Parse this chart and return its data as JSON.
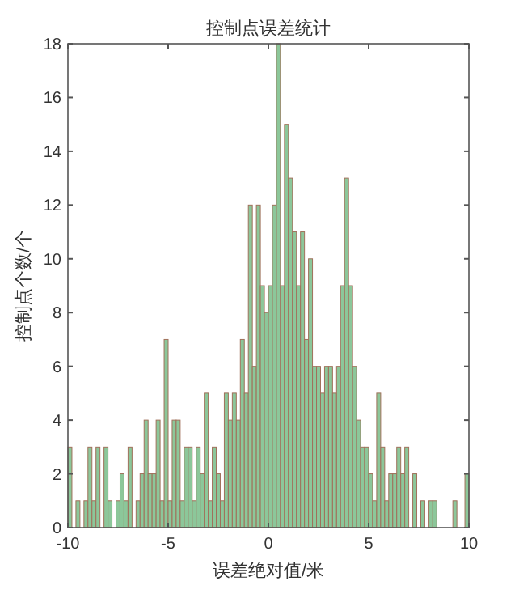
{
  "chart_data": {
    "type": "histogram",
    "title": "控制点误差统计",
    "xlabel": "误差绝对值/米",
    "ylabel": "控制点个数/个",
    "bins": [
      -10,
      -9.8,
      -9.6,
      -9.4,
      -9.2,
      -9,
      -8.8,
      -8.6,
      -8.4,
      -8.2,
      -8,
      -7.8,
      -7.6,
      -7.4,
      -7.2,
      -7,
      -6.8,
      -6.6,
      -6.4,
      -6.2,
      -6,
      -5.8,
      -5.6,
      -5.4,
      -5.2,
      -5,
      -4.8,
      -4.6,
      -4.4,
      -4.2,
      -4,
      -3.8,
      -3.6,
      -3.4,
      -3.2,
      -3,
      -2.8,
      -2.6,
      -2.4,
      -2.2,
      -2,
      -1.8,
      -1.6,
      -1.4,
      -1.2,
      -1,
      -0.8,
      -0.6,
      -0.4,
      -0.2,
      0,
      0.2,
      0.4,
      0.6,
      0.8,
      1,
      1.2,
      1.4,
      1.6,
      1.8,
      2,
      2.2,
      2.4,
      2.6,
      2.8,
      3,
      3.2,
      3.4,
      3.6,
      3.8,
      4,
      4.2,
      4.4,
      4.6,
      4.8,
      5,
      5.2,
      5.4,
      5.6,
      5.8,
      6,
      6.2,
      6.4,
      6.6,
      6.8,
      7,
      7.2,
      7.4,
      7.6,
      7.8,
      8,
      8.2,
      8.4,
      8.6,
      8.8,
      9,
      9.2,
      9.4,
      9.6,
      9.8,
      10
    ],
    "values": [
      3,
      0,
      1,
      0,
      1,
      3,
      1,
      3,
      0,
      3,
      1,
      0,
      1,
      2,
      1,
      3,
      0,
      1,
      2,
      4,
      2,
      2,
      4,
      1,
      7,
      1,
      4,
      4,
      1,
      3,
      3,
      1,
      3,
      2,
      5,
      1,
      3,
      2,
      1,
      5,
      4,
      5,
      4,
      7,
      5,
      12,
      6,
      12,
      9,
      8,
      9,
      12,
      18,
      9,
      15,
      13,
      11,
      9,
      11,
      7,
      10,
      6,
      6,
      5,
      6,
      6,
      5,
      6,
      9,
      13,
      9,
      6,
      4,
      3,
      3,
      2,
      1,
      5,
      3,
      1,
      2,
      2,
      3,
      2,
      3,
      0,
      2,
      0,
      1,
      0,
      1,
      1,
      0,
      0,
      0,
      0,
      1,
      0,
      0,
      2
    ],
    "color": "#8cc79a",
    "xlim": [
      -10,
      10
    ],
    "xticks": [
      -10,
      -5,
      0,
      5,
      10
    ],
    "ylim": [
      0,
      18
    ],
    "yticks": [
      0,
      2,
      4,
      6,
      8,
      10,
      12,
      14,
      16,
      18
    ],
    "grid": false
  }
}
